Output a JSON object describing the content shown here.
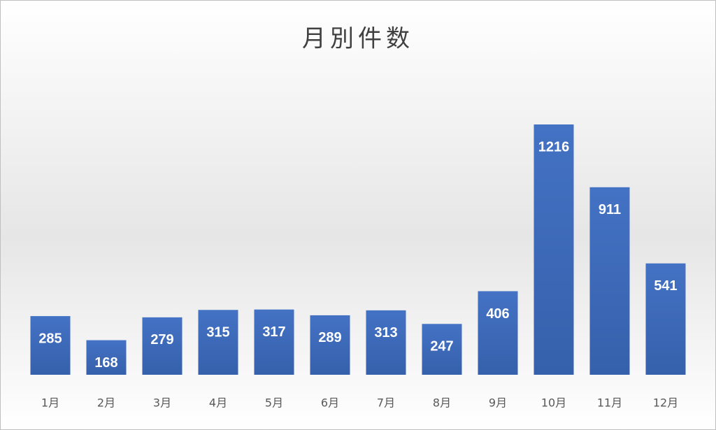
{
  "chart_data": {
    "type": "bar",
    "title": "月別件数",
    "categories": [
      "1月",
      "2月",
      "3月",
      "4月",
      "5月",
      "6月",
      "7月",
      "8月",
      "9月",
      "10月",
      "11月",
      "12月"
    ],
    "values": [
      285,
      168,
      279,
      315,
      317,
      289,
      313,
      247,
      406,
      1216,
      911,
      541
    ],
    "color": "#4472c4"
  }
}
